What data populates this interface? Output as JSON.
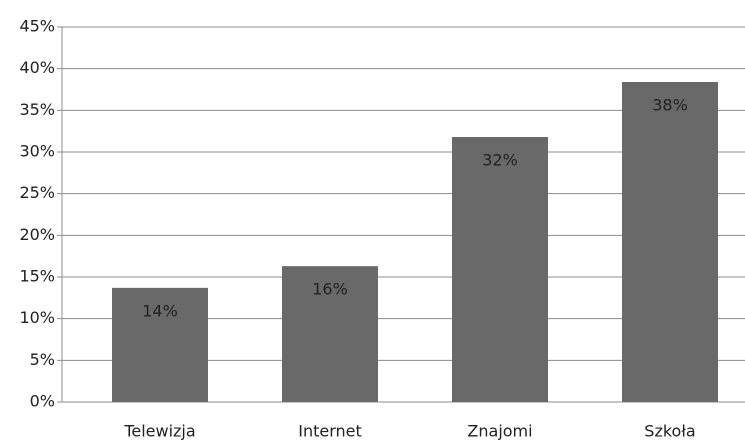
{
  "chart_data": {
    "type": "bar",
    "categories": [
      "Telewizja",
      "Internet",
      "Znajomi",
      "Szkoła"
    ],
    "values": [
      13.7,
      16.3,
      31.8,
      38.4
    ],
    "value_labels": [
      "14%",
      "16%",
      "32%",
      "38%"
    ],
    "color": "#696969",
    "ylim": [
      0,
      45
    ],
    "yticks": [
      {
        "value": 0,
        "label": "0%"
      },
      {
        "value": 5,
        "label": "5%"
      },
      {
        "value": 10,
        "label": "10%"
      },
      {
        "value": 15,
        "label": "15%"
      },
      {
        "value": 20,
        "label": "20%"
      },
      {
        "value": 25,
        "label": "25%"
      },
      {
        "value": 30,
        "label": "30%"
      },
      {
        "value": 35,
        "label": "35%"
      },
      {
        "value": 40,
        "label": "40%"
      },
      {
        "value": 45,
        "label": "45%"
      }
    ],
    "grid": true
  }
}
